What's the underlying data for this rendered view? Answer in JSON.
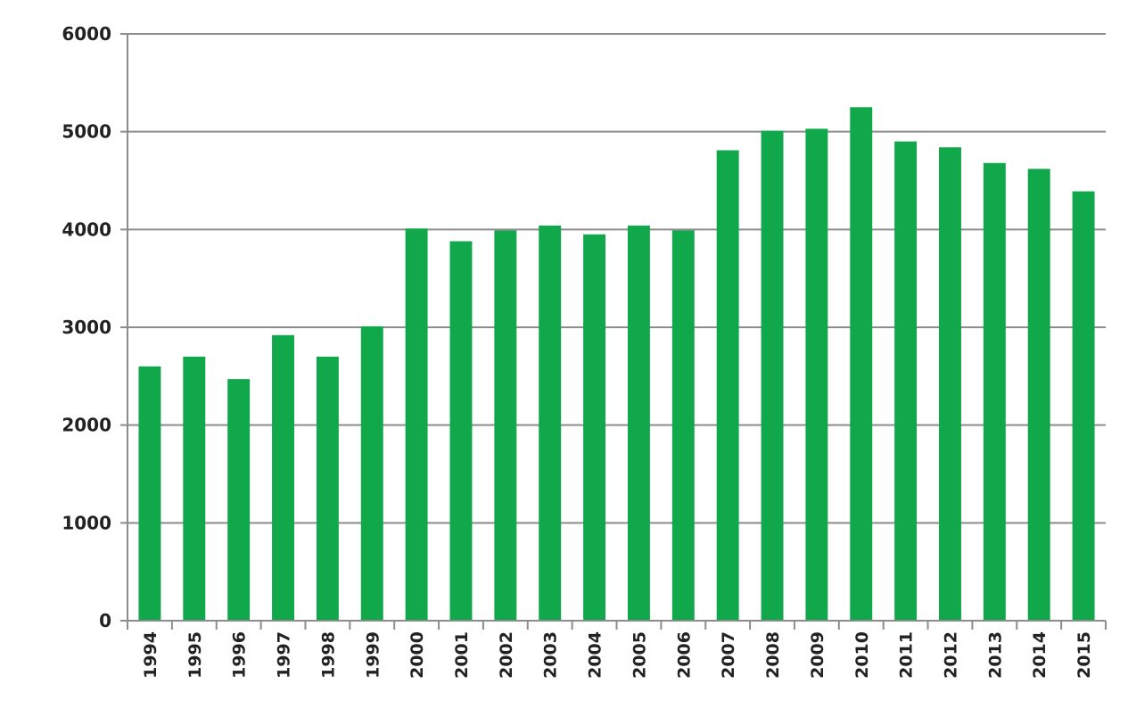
{
  "chart_data": {
    "type": "bar",
    "title": "",
    "xlabel": "",
    "ylabel": "",
    "categories": [
      "1994",
      "1995",
      "1996",
      "1997",
      "1998",
      "1999",
      "2000",
      "2001",
      "2002",
      "2003",
      "2004",
      "2005",
      "2006",
      "2007",
      "2008",
      "2009",
      "2010",
      "2011",
      "2012",
      "2013",
      "2014",
      "2015"
    ],
    "series": [
      {
        "values": [
          2600,
          2700,
          2470,
          2920,
          2700,
          3010,
          4010,
          3880,
          3990,
          4040,
          3950,
          4040,
          3990,
          4810,
          5010,
          5030,
          5250,
          4900,
          4840,
          4680,
          4620,
          4390
        ],
        "color": "#10a84b"
      }
    ],
    "ylim": [
      0,
      6000
    ],
    "yticks": [
      0,
      1000,
      2000,
      3000,
      4000,
      5000,
      6000
    ],
    "grid": true,
    "legend": "none",
    "axis_color": "#8c8c8c",
    "grid_color": "#8c8c8c"
  }
}
